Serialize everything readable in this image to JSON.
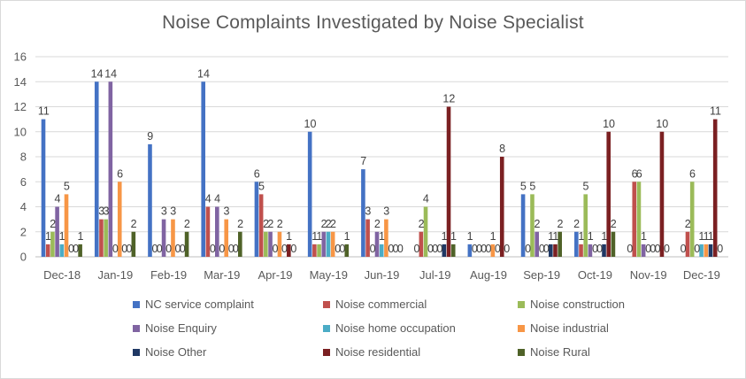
{
  "chart_data": {
    "type": "bar",
    "title": "Noise Complaints Investigated by Noise Specialist",
    "categories": [
      "Dec-18",
      "Jan-19",
      "Feb-19",
      "Mar-19",
      "Apr-19",
      "May-19",
      "Jun-19",
      "Jul-19",
      "Aug-19",
      "Sep-19",
      "Oct-19",
      "Nov-19",
      "Dec-19"
    ],
    "ylim": [
      0,
      16
    ],
    "yticks": [
      0,
      2,
      4,
      6,
      8,
      10,
      12,
      14,
      16
    ],
    "grid": true,
    "legend_position": "bottom",
    "series": [
      {
        "name": "NC service complaint",
        "color": "#4472c4",
        "values": [
          11,
          14,
          9,
          14,
          6,
          10,
          7,
          0,
          1,
          5,
          2,
          0,
          0
        ]
      },
      {
        "name": "Noise commercial",
        "color": "#c0504d",
        "values": [
          1,
          3,
          0,
          4,
          5,
          1,
          3,
          2,
          0,
          0,
          1,
          6,
          2
        ]
      },
      {
        "name": "Noise construction",
        "color": "#9bbb59",
        "values": [
          2,
          3,
          0,
          0,
          2,
          1,
          0,
          4,
          0,
          5,
          5,
          6,
          6
        ]
      },
      {
        "name": "Noise Enquiry",
        "color": "#8064a2",
        "values": [
          4,
          14,
          3,
          4,
          2,
          2,
          2,
          0,
          0,
          2,
          1,
          1,
          0
        ]
      },
      {
        "name": "Noise home occupation",
        "color": "#4bacc6",
        "values": [
          1,
          0,
          0,
          0,
          0,
          2,
          1,
          0,
          0,
          0,
          0,
          0,
          1
        ]
      },
      {
        "name": "Noise industrial",
        "color": "#f79646",
        "values": [
          5,
          6,
          3,
          3,
          2,
          2,
          3,
          0,
          1,
          0,
          0,
          0,
          1
        ]
      },
      {
        "name": "Noise Other",
        "color": "#1f3864",
        "values": [
          0,
          0,
          0,
          0,
          0,
          0,
          0,
          1,
          0,
          1,
          1,
          0,
          1
        ]
      },
      {
        "name": "Noise residential",
        "color": "#7b2022",
        "values": [
          0,
          0,
          0,
          0,
          1,
          0,
          0,
          12,
          8,
          1,
          10,
          10,
          11
        ]
      },
      {
        "name": "Noise Rural",
        "color": "#4f6228",
        "values": [
          1,
          2,
          2,
          2,
          0,
          1,
          0,
          1,
          0,
          2,
          2,
          0,
          0
        ]
      }
    ]
  }
}
